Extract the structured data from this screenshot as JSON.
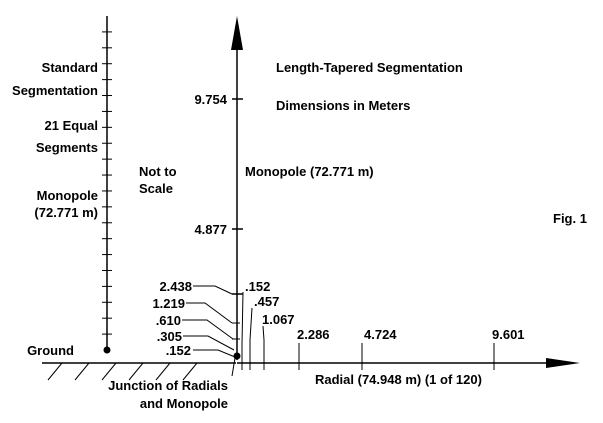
{
  "titles": {
    "main": "Length-Tapered Segmentation",
    "units": "Dimensions in Meters",
    "fig": "Fig. 1"
  },
  "left": {
    "line1": "Standard",
    "line2": "Segmentation",
    "line3": "21 Equal",
    "line4": "Segments",
    "line5": "Monopole",
    "line6": "(72.771 m)",
    "ground": "Ground",
    "segments": 21
  },
  "scale_note": {
    "line1": "Not to",
    "line2": "Scale"
  },
  "monopole": {
    "label": "Monopole (72.771 m)",
    "marks": [
      "9.754",
      "4.877",
      "2.438",
      "1.219",
      ".610",
      ".305",
      ".152"
    ]
  },
  "radial": {
    "label": "Radial (74.948 m) (1 of 120)",
    "marks": [
      ".152",
      ".457",
      "1.067",
      "2.286",
      "4.724",
      "9.601"
    ]
  },
  "junction": {
    "line1": "Junction of Radials",
    "line2": "and Monopole"
  }
}
